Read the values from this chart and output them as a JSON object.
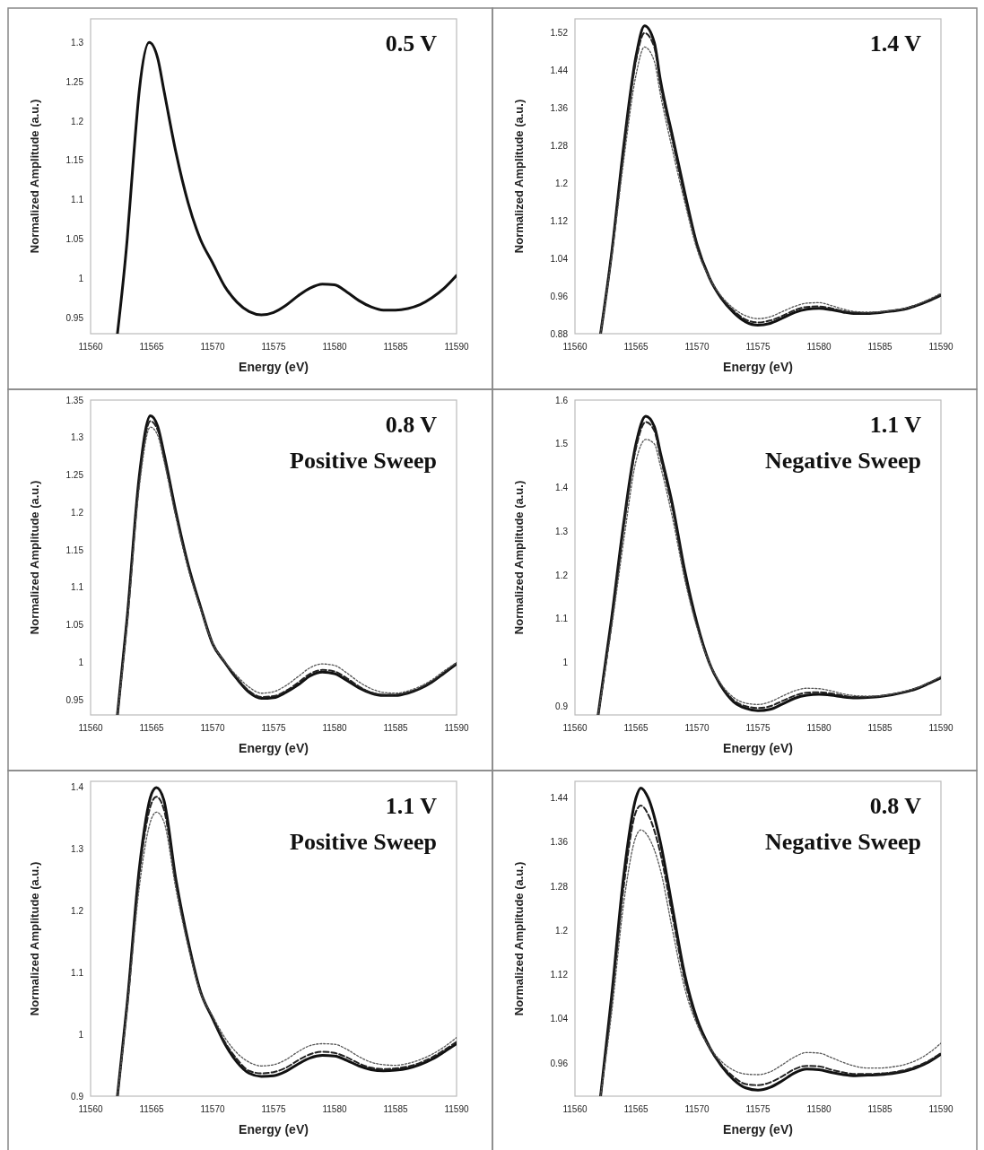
{
  "chart_data": [
    {
      "type": "line",
      "title": "0.5 V",
      "xlabel": "Energy (eV)",
      "ylabel": "Normalized Amplitude (a.u.)",
      "xlim": [
        11560,
        11590
      ],
      "xticks": [
        11560,
        11565,
        11570,
        11575,
        11580,
        11585,
        11590
      ],
      "ylim": [
        0.93,
        1.33
      ],
      "yticks": [
        0.95,
        1,
        1.05,
        1.1,
        1.15,
        1.2,
        1.25,
        1.3
      ],
      "grid": false,
      "legend": false,
      "series": [
        {
          "color": "#111111",
          "line_style": "solid",
          "x": [
            11562.2,
            11563,
            11563.5,
            11564,
            11564.8,
            11565.5,
            11566,
            11567,
            11568,
            11569,
            11570,
            11571,
            11572,
            11573,
            11574,
            11575,
            11576,
            11577,
            11578,
            11579,
            11580,
            11581,
            11582,
            11583,
            11584,
            11585,
            11586,
            11587,
            11588,
            11589,
            11590
          ],
          "values": [
            0.93,
            1.05,
            1.15,
            1.24,
            1.3,
            1.28,
            1.24,
            1.16,
            1.096,
            1.05,
            1.02,
            0.99,
            0.97,
            0.958,
            0.954,
            0.957,
            0.966,
            0.978,
            0.988,
            0.993,
            0.992,
            0.983,
            0.972,
            0.964,
            0.96,
            0.96,
            0.962,
            0.967,
            0.976,
            0.988,
            1.004
          ]
        }
      ]
    },
    {
      "type": "line",
      "title": "1.4 V",
      "xlabel": "Energy (eV)",
      "ylabel": "Normalized Amplitude (a.u.)",
      "xlim": [
        11560,
        11590
      ],
      "xticks": [
        11560,
        11565,
        11570,
        11575,
        11580,
        11585,
        11590
      ],
      "ylim": [
        0.88,
        1.55
      ],
      "yticks": [
        0.88,
        0.96,
        1.04,
        1.12,
        1.2,
        1.28,
        1.36,
        1.44,
        1.52
      ],
      "grid": false,
      "legend": false,
      "series": [
        {
          "color": "#111111",
          "line_style": "solid",
          "x": [
            11562.1,
            11563,
            11564,
            11565,
            11565.7,
            11566.5,
            11567,
            11568,
            11569,
            11570,
            11571,
            11572,
            11573,
            11574,
            11575,
            11576,
            11577,
            11578,
            11579,
            11580,
            11581,
            11582,
            11583,
            11584,
            11585,
            11586,
            11587,
            11588,
            11589,
            11590
          ],
          "values": [
            0.88,
            1.05,
            1.28,
            1.47,
            1.535,
            1.5,
            1.42,
            1.3,
            1.18,
            1.07,
            1.0,
            0.955,
            0.925,
            0.905,
            0.898,
            0.902,
            0.913,
            0.925,
            0.932,
            0.934,
            0.931,
            0.926,
            0.923,
            0.923,
            0.925,
            0.928,
            0.932,
            0.94,
            0.95,
            0.962
          ]
        },
        {
          "color": "#222222",
          "line_style": "dashed",
          "x": [
            11562.1,
            11563,
            11564,
            11565,
            11565.7,
            11566.5,
            11567,
            11568,
            11569,
            11570,
            11571,
            11572,
            11573,
            11574,
            11575,
            11576,
            11577,
            11578,
            11579,
            11580,
            11581,
            11582,
            11583,
            11584,
            11585,
            11586,
            11587,
            11588,
            11589,
            11590
          ],
          "values": [
            0.88,
            1.05,
            1.27,
            1.46,
            1.52,
            1.49,
            1.41,
            1.29,
            1.17,
            1.07,
            1.0,
            0.957,
            0.929,
            0.91,
            0.904,
            0.908,
            0.918,
            0.93,
            0.937,
            0.938,
            0.934,
            0.928,
            0.925,
            0.924,
            0.926,
            0.929,
            0.933,
            0.941,
            0.951,
            0.963
          ]
        },
        {
          "color": "#555555",
          "line_style": "dotted",
          "x": [
            11562.1,
            11563,
            11564,
            11565,
            11565.7,
            11566.5,
            11567,
            11568,
            11569,
            11570,
            11571,
            11572,
            11573,
            11574,
            11575,
            11576,
            11577,
            11578,
            11579,
            11580,
            11581,
            11582,
            11583,
            11584,
            11585,
            11586,
            11587,
            11588,
            11589,
            11590
          ],
          "values": [
            0.88,
            1.04,
            1.25,
            1.43,
            1.49,
            1.46,
            1.39,
            1.27,
            1.16,
            1.06,
            1.0,
            0.96,
            0.934,
            0.918,
            0.912,
            0.916,
            0.927,
            0.938,
            0.945,
            0.946,
            0.94,
            0.932,
            0.927,
            0.926,
            0.927,
            0.93,
            0.934,
            0.942,
            0.953,
            0.966
          ]
        }
      ]
    },
    {
      "type": "line",
      "title": "0.8 V",
      "subtitle": "Positive Sweep",
      "xlabel": "Energy (eV)",
      "ylabel": "Normalized Amplitude (a.u.)",
      "xlim": [
        11560,
        11590
      ],
      "xticks": [
        11560,
        11565,
        11570,
        11575,
        11580,
        11585,
        11590
      ],
      "ylim": [
        0.93,
        1.35
      ],
      "yticks": [
        0.95,
        1,
        1.05,
        1.1,
        1.15,
        1.2,
        1.25,
        1.3,
        1.35
      ],
      "grid": false,
      "legend": false,
      "series": [
        {
          "color": "#111111",
          "line_style": "solid",
          "x": [
            11562.2,
            11563,
            11564,
            11564.9,
            11565.5,
            11566,
            11567,
            11568,
            11569,
            11570,
            11571,
            11572,
            11573,
            11574,
            11575,
            11576,
            11577,
            11578,
            11579,
            11580,
            11581,
            11582,
            11583,
            11584,
            11585,
            11586,
            11587,
            11588,
            11589,
            11590
          ],
          "values": [
            0.93,
            1.06,
            1.25,
            1.329,
            1.315,
            1.28,
            1.2,
            1.13,
            1.075,
            1.025,
            1.0,
            0.978,
            0.96,
            0.952,
            0.953,
            0.96,
            0.97,
            0.982,
            0.987,
            0.985,
            0.976,
            0.966,
            0.959,
            0.956,
            0.956,
            0.959,
            0.965,
            0.974,
            0.986,
            0.998
          ]
        },
        {
          "color": "#222222",
          "line_style": "dashed",
          "x": [
            11562.2,
            11563,
            11564,
            11564.9,
            11565.5,
            11566,
            11567,
            11568,
            11569,
            11570,
            11571,
            11572,
            11573,
            11574,
            11575,
            11576,
            11577,
            11578,
            11579,
            11580,
            11581,
            11582,
            11583,
            11584,
            11585,
            11586,
            11587,
            11588,
            11589,
            11590
          ],
          "values": [
            0.93,
            1.06,
            1.245,
            1.322,
            1.31,
            1.275,
            1.197,
            1.128,
            1.074,
            1.025,
            1.0,
            0.979,
            0.962,
            0.954,
            0.955,
            0.962,
            0.973,
            0.985,
            0.99,
            0.988,
            0.979,
            0.968,
            0.96,
            0.957,
            0.957,
            0.96,
            0.966,
            0.975,
            0.987,
            0.999
          ]
        },
        {
          "color": "#555555",
          "line_style": "dotted",
          "x": [
            11562.2,
            11563,
            11564,
            11564.9,
            11565.5,
            11566,
            11567,
            11568,
            11569,
            11570,
            11571,
            11572,
            11573,
            11574,
            11575,
            11576,
            11577,
            11578,
            11579,
            11580,
            11581,
            11582,
            11583,
            11584,
            11585,
            11586,
            11587,
            11588,
            11589,
            11590
          ],
          "values": [
            0.93,
            1.05,
            1.235,
            1.314,
            1.303,
            1.27,
            1.193,
            1.125,
            1.072,
            1.026,
            1.001,
            0.982,
            0.967,
            0.959,
            0.961,
            0.969,
            0.981,
            0.993,
            0.998,
            0.996,
            0.986,
            0.974,
            0.965,
            0.96,
            0.959,
            0.962,
            0.968,
            0.977,
            0.989,
            1.0
          ]
        }
      ]
    },
    {
      "type": "line",
      "title": "1.1 V",
      "subtitle": "Negative Sweep",
      "xlabel": "Energy (eV)",
      "ylabel": "Normalized Amplitude (a.u.)",
      "xlim": [
        11560,
        11590
      ],
      "xticks": [
        11560,
        11565,
        11570,
        11575,
        11580,
        11585,
        11590
      ],
      "ylim": [
        0.88,
        1.6
      ],
      "yticks": [
        0.9,
        1,
        1.1,
        1.2,
        1.3,
        1.4,
        1.5,
        1.6
      ],
      "grid": false,
      "legend": false,
      "series": [
        {
          "color": "#111111",
          "line_style": "solid",
          "x": [
            11561.9,
            11563,
            11564,
            11565,
            11565.8,
            11566.5,
            11567,
            11568,
            11569,
            11570,
            11571,
            11572,
            11573,
            11574,
            11575,
            11576,
            11577,
            11578,
            11579,
            11580,
            11581,
            11582,
            11583,
            11584,
            11585,
            11586,
            11587,
            11588,
            11589,
            11590
          ],
          "values": [
            0.88,
            1.1,
            1.32,
            1.5,
            1.563,
            1.54,
            1.48,
            1.36,
            1.21,
            1.09,
            1.0,
            0.945,
            0.91,
            0.895,
            0.89,
            0.893,
            0.905,
            0.918,
            0.925,
            0.927,
            0.925,
            0.921,
            0.919,
            0.92,
            0.922,
            0.926,
            0.932,
            0.94,
            0.952,
            0.965
          ]
        },
        {
          "color": "#222222",
          "line_style": "dashed",
          "x": [
            11561.9,
            11563,
            11564,
            11565,
            11565.8,
            11566.5,
            11567,
            11568,
            11569,
            11570,
            11571,
            11572,
            11573,
            11574,
            11575,
            11576,
            11577,
            11578,
            11579,
            11580,
            11581,
            11582,
            11583,
            11584,
            11585,
            11586,
            11587,
            11588,
            11589,
            11590
          ],
          "values": [
            0.88,
            1.09,
            1.31,
            1.49,
            1.55,
            1.53,
            1.47,
            1.35,
            1.2,
            1.085,
            1.0,
            0.947,
            0.914,
            0.9,
            0.896,
            0.9,
            0.912,
            0.924,
            0.931,
            0.932,
            0.929,
            0.924,
            0.921,
            0.921,
            0.923,
            0.927,
            0.933,
            0.941,
            0.953,
            0.966
          ]
        },
        {
          "color": "#555555",
          "line_style": "dotted",
          "x": [
            11561.9,
            11563,
            11564,
            11565,
            11565.8,
            11566.5,
            11567,
            11568,
            11569,
            11570,
            11571,
            11572,
            11573,
            11574,
            11575,
            11576,
            11577,
            11578,
            11579,
            11580,
            11581,
            11582,
            11583,
            11584,
            11585,
            11586,
            11587,
            11588,
            11589,
            11590
          ],
          "values": [
            0.88,
            1.08,
            1.28,
            1.46,
            1.51,
            1.5,
            1.45,
            1.33,
            1.19,
            1.08,
            1.0,
            0.95,
            0.92,
            0.907,
            0.904,
            0.91,
            0.923,
            0.935,
            0.941,
            0.94,
            0.935,
            0.928,
            0.924,
            0.923,
            0.924,
            0.928,
            0.934,
            0.942,
            0.954,
            0.968
          ]
        }
      ]
    },
    {
      "type": "line",
      "title": "1.1 V",
      "subtitle": "Positive Sweep",
      "xlabel": "Energy (eV)",
      "ylabel": "Normalized Amplitude (a.u.)",
      "xlim": [
        11560,
        11590
      ],
      "xticks": [
        11560,
        11565,
        11570,
        11575,
        11580,
        11585,
        11590
      ],
      "ylim": [
        0.9,
        1.41
      ],
      "yticks": [
        0.9,
        1,
        1.1,
        1.2,
        1.3,
        1.4
      ],
      "grid": false,
      "legend": false,
      "series": [
        {
          "color": "#111111",
          "line_style": "solid",
          "x": [
            11562.2,
            11563,
            11564,
            11565,
            11565.4,
            11566,
            11567,
            11568,
            11569,
            11570,
            11571,
            11572,
            11573,
            11574,
            11575,
            11576,
            11577,
            11578,
            11579,
            11580,
            11581,
            11582,
            11583,
            11584,
            11585,
            11586,
            11587,
            11588,
            11589,
            11590
          ],
          "values": [
            0.9,
            1.05,
            1.27,
            1.39,
            1.4,
            1.38,
            1.25,
            1.15,
            1.07,
            1.026,
            0.985,
            0.955,
            0.937,
            0.932,
            0.933,
            0.94,
            0.952,
            0.962,
            0.966,
            0.965,
            0.958,
            0.949,
            0.943,
            0.941,
            0.942,
            0.945,
            0.951,
            0.96,
            0.972,
            0.985
          ]
        },
        {
          "color": "#222222",
          "line_style": "dashed",
          "x": [
            11562.2,
            11563,
            11564,
            11565,
            11565.4,
            11566,
            11567,
            11568,
            11569,
            11570,
            11571,
            11572,
            11573,
            11574,
            11575,
            11576,
            11577,
            11578,
            11579,
            11580,
            11581,
            11582,
            11583,
            11584,
            11585,
            11586,
            11587,
            11588,
            11589,
            11590
          ],
          "values": [
            0.9,
            1.05,
            1.26,
            1.375,
            1.385,
            1.365,
            1.245,
            1.147,
            1.07,
            1.027,
            0.988,
            0.96,
            0.941,
            0.937,
            0.939,
            0.946,
            0.958,
            0.968,
            0.972,
            0.97,
            0.963,
            0.953,
            0.946,
            0.944,
            0.945,
            0.948,
            0.954,
            0.963,
            0.975,
            0.988
          ]
        },
        {
          "color": "#555555",
          "line_style": "dotted",
          "x": [
            11562.2,
            11563,
            11564,
            11565,
            11565.4,
            11566,
            11567,
            11568,
            11569,
            11570,
            11571,
            11572,
            11573,
            11574,
            11575,
            11576,
            11577,
            11578,
            11579,
            11580,
            11581,
            11582,
            11583,
            11584,
            11585,
            11586,
            11587,
            11588,
            11589,
            11590
          ],
          "values": [
            0.9,
            1.04,
            1.24,
            1.35,
            1.36,
            1.345,
            1.235,
            1.142,
            1.068,
            1.03,
            0.995,
            0.97,
            0.955,
            0.949,
            0.951,
            0.959,
            0.972,
            0.982,
            0.985,
            0.984,
            0.976,
            0.964,
            0.955,
            0.951,
            0.95,
            0.953,
            0.959,
            0.968,
            0.98,
            0.995
          ]
        }
      ]
    },
    {
      "type": "line",
      "title": "0.8 V",
      "subtitle": "Negative Sweep",
      "xlabel": "Energy (eV)",
      "ylabel": "Normalized Amplitude (a.u.)",
      "xlim": [
        11560,
        11590
      ],
      "xticks": [
        11560,
        11565,
        11570,
        11575,
        11580,
        11585,
        11590
      ],
      "ylim": [
        0.9,
        1.47
      ],
      "yticks": [
        0.96,
        1.04,
        1.12,
        1.2,
        1.28,
        1.36,
        1.44
      ],
      "grid": false,
      "legend": false,
      "series": [
        {
          "color": "#111111",
          "line_style": "solid",
          "x": [
            11562.1,
            11563,
            11564,
            11565,
            11565.4,
            11566,
            11567,
            11568,
            11569,
            11570,
            11571,
            11572,
            11573,
            11574,
            11575,
            11576,
            11577,
            11578,
            11579,
            11580,
            11581,
            11582,
            11583,
            11584,
            11585,
            11586,
            11587,
            11588,
            11589,
            11590
          ],
          "values": [
            0.9,
            1.08,
            1.3,
            1.44,
            1.458,
            1.44,
            1.36,
            1.24,
            1.12,
            1.04,
            0.99,
            0.955,
            0.93,
            0.915,
            0.911,
            0.916,
            0.928,
            0.942,
            0.949,
            0.948,
            0.943,
            0.939,
            0.937,
            0.938,
            0.939,
            0.941,
            0.945,
            0.952,
            0.962,
            0.976
          ]
        },
        {
          "color": "#222222",
          "line_style": "dashed",
          "x": [
            11562.1,
            11563,
            11564,
            11565,
            11565.4,
            11566,
            11567,
            11568,
            11569,
            11570,
            11571,
            11572,
            11573,
            11574,
            11575,
            11576,
            11577,
            11578,
            11579,
            11580,
            11581,
            11582,
            11583,
            11584,
            11585,
            11586,
            11587,
            11588,
            11589,
            11590
          ],
          "values": [
            0.9,
            1.07,
            1.28,
            1.415,
            1.426,
            1.41,
            1.34,
            1.225,
            1.11,
            1.035,
            0.988,
            0.957,
            0.935,
            0.922,
            0.92,
            0.925,
            0.936,
            0.949,
            0.955,
            0.954,
            0.948,
            0.943,
            0.94,
            0.94,
            0.941,
            0.943,
            0.947,
            0.954,
            0.964,
            0.978
          ]
        },
        {
          "color": "#555555",
          "line_style": "dotted",
          "x": [
            11562.1,
            11563,
            11564,
            11565,
            11565.4,
            11566,
            11567,
            11568,
            11569,
            11570,
            11571,
            11572,
            11573,
            11574,
            11575,
            11576,
            11577,
            11578,
            11579,
            11580,
            11581,
            11582,
            11583,
            11584,
            11585,
            11586,
            11587,
            11588,
            11589,
            11590
          ],
          "values": [
            0.9,
            1.05,
            1.25,
            1.37,
            1.382,
            1.37,
            1.31,
            1.2,
            1.095,
            1.03,
            0.99,
            0.963,
            0.947,
            0.94,
            0.939,
            0.944,
            0.957,
            0.971,
            0.979,
            0.978,
            0.97,
            0.961,
            0.954,
            0.951,
            0.951,
            0.953,
            0.957,
            0.965,
            0.978,
            0.996
          ]
        }
      ]
    }
  ]
}
